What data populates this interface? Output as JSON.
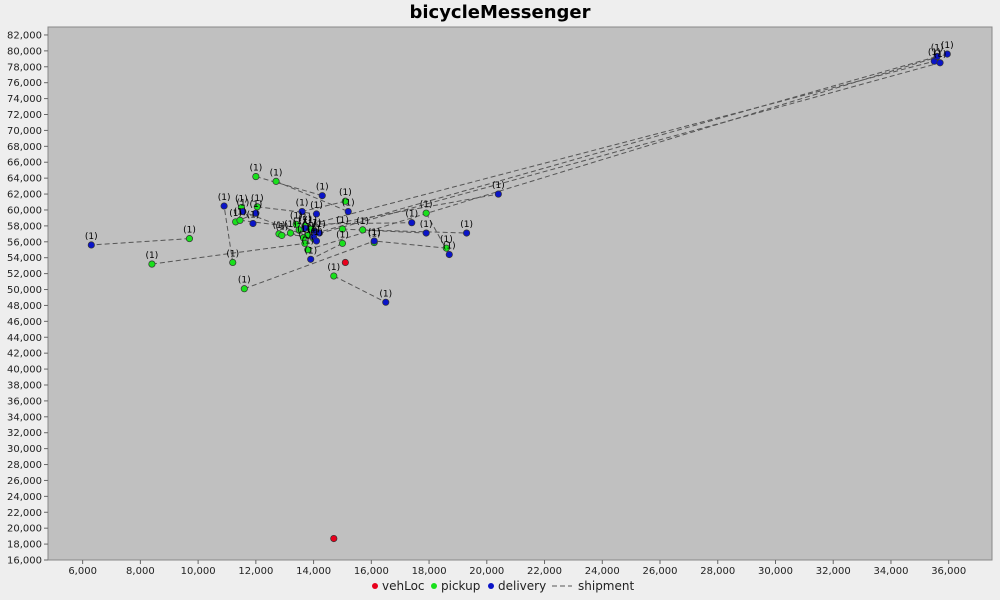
{
  "chart_data": {
    "type": "scatter",
    "title": "bicycleMessenger",
    "xlabel": "",
    "ylabel": "",
    "xlim": [
      4800,
      37500
    ],
    "ylim": [
      16000,
      83000
    ],
    "x_ticks": [
      6000,
      8000,
      10000,
      12000,
      14000,
      16000,
      18000,
      20000,
      22000,
      24000,
      26000,
      28000,
      30000,
      32000,
      34000,
      36000
    ],
    "y_ticks": [
      16000,
      18000,
      20000,
      22000,
      24000,
      26000,
      28000,
      30000,
      32000,
      34000,
      36000,
      38000,
      40000,
      42000,
      44000,
      46000,
      48000,
      50000,
      52000,
      54000,
      56000,
      58000,
      60000,
      62000,
      64000,
      66000,
      68000,
      70000,
      72000,
      74000,
      76000,
      78000,
      80000,
      82000
    ],
    "x_tick_labels": [
      "6,000",
      "8,000",
      "10,000",
      "12,000",
      "14,000",
      "16,000",
      "18,000",
      "20,000",
      "22,000",
      "24,000",
      "26,000",
      "28,000",
      "30,000",
      "32,000",
      "34,000",
      "36,000"
    ],
    "y_tick_labels": [
      "16,000",
      "18,000",
      "20,000",
      "22,000",
      "24,000",
      "26,000",
      "28,000",
      "30,000",
      "32,000",
      "34,000",
      "36,000",
      "38,000",
      "40,000",
      "42,000",
      "44,000",
      "46,000",
      "48,000",
      "50,000",
      "52,000",
      "54,000",
      "56,000",
      "58,000",
      "60,000",
      "62,000",
      "64,000",
      "66,000",
      "68,000",
      "70,000",
      "72,000",
      "74,000",
      "76,000",
      "78,000",
      "80,000",
      "82,000"
    ],
    "grid": false,
    "legend_position": "bottom",
    "point_label": "(1)",
    "colors": {
      "background": "#c0c0c0",
      "vehLoc": "#e8001c",
      "pickup": "#19e01c",
      "delivery": "#0a14c8",
      "shipment": "#555555"
    },
    "series": [
      {
        "name": "vehLoc",
        "points": [
          [
            15100,
            53400
          ],
          [
            14700,
            18700
          ]
        ]
      },
      {
        "name": "pickup",
        "points": [
          [
            9700,
            56400
          ],
          [
            8400,
            53200
          ],
          [
            11200,
            53400
          ],
          [
            11600,
            50100
          ],
          [
            12000,
            64200
          ],
          [
            12700,
            63600
          ],
          [
            12050,
            60400
          ],
          [
            11500,
            60300
          ],
          [
            11300,
            58500
          ],
          [
            11450,
            58700
          ],
          [
            12800,
            57000
          ],
          [
            13200,
            57100
          ],
          [
            13500,
            57500
          ],
          [
            13400,
            58200
          ],
          [
            13700,
            58000
          ],
          [
            13800,
            56800
          ],
          [
            13650,
            56500
          ],
          [
            13700,
            55800
          ],
          [
            13800,
            55000
          ],
          [
            14000,
            56400
          ],
          [
            13900,
            57600
          ],
          [
            15000,
            57600
          ],
          [
            15000,
            55800
          ],
          [
            15100,
            61100
          ],
          [
            15700,
            57500
          ],
          [
            16100,
            55900
          ],
          [
            14700,
            51700
          ],
          [
            17900,
            59600
          ],
          [
            18600,
            55200
          ],
          [
            12900,
            56800
          ]
        ]
      },
      {
        "name": "delivery",
        "points": [
          [
            6300,
            55600
          ],
          [
            10900,
            60500
          ],
          [
            11900,
            58300
          ],
          [
            12000,
            59600
          ],
          [
            11550,
            59800
          ],
          [
            14300,
            61800
          ],
          [
            13600,
            59800
          ],
          [
            14100,
            59500
          ],
          [
            15200,
            59800
          ],
          [
            13700,
            57700
          ],
          [
            14050,
            57300
          ],
          [
            14200,
            57100
          ],
          [
            14000,
            56600
          ],
          [
            14100,
            56100
          ],
          [
            13900,
            53800
          ],
          [
            16100,
            56100
          ],
          [
            16500,
            48400
          ],
          [
            17400,
            58400
          ],
          [
            17900,
            57100
          ],
          [
            18700,
            54400
          ],
          [
            19300,
            57100
          ],
          [
            20400,
            62000
          ],
          [
            35500,
            78700
          ],
          [
            35600,
            79300
          ],
          [
            35700,
            78500
          ],
          [
            35950,
            79600
          ]
        ]
      },
      {
        "name": "shipment",
        "segments": [
          [
            [
              9700,
              56400
            ],
            [
              6300,
              55600
            ]
          ],
          [
            [
              8400,
              53200
            ],
            [
              13700,
              55800
            ]
          ],
          [
            [
              11200,
              53400
            ],
            [
              10900,
              60500
            ]
          ],
          [
            [
              11600,
              50100
            ],
            [
              16100,
              56100
            ]
          ],
          [
            [
              12000,
              64200
            ],
            [
              14300,
              61800
            ]
          ],
          [
            [
              12700,
              63600
            ],
            [
              15200,
              59800
            ]
          ],
          [
            [
              12050,
              60400
            ],
            [
              14100,
              59500
            ]
          ],
          [
            [
              11500,
              60300
            ],
            [
              11900,
              58300
            ]
          ],
          [
            [
              11300,
              58500
            ],
            [
              12000,
              59600
            ]
          ],
          [
            [
              11450,
              58700
            ],
            [
              13700,
              57700
            ]
          ],
          [
            [
              12800,
              57000
            ],
            [
              14000,
              56600
            ]
          ],
          [
            [
              13200,
              57100
            ],
            [
              14100,
              56100
            ]
          ],
          [
            [
              13500,
              57500
            ],
            [
              20400,
              62000
            ]
          ],
          [
            [
              13400,
              58200
            ],
            [
              17400,
              58400
            ]
          ],
          [
            [
              13700,
              58000
            ],
            [
              35500,
              78700
            ]
          ],
          [
            [
              13800,
              56800
            ],
            [
              35600,
              79300
            ]
          ],
          [
            [
              13650,
              56500
            ],
            [
              35700,
              78500
            ]
          ],
          [
            [
              13800,
              55000
            ],
            [
              35950,
              79600
            ]
          ],
          [
            [
              14700,
              51700
            ],
            [
              16500,
              48400
            ]
          ],
          [
            [
              15000,
              57600
            ],
            [
              17900,
              57100
            ]
          ],
          [
            [
              15000,
              55800
            ],
            [
              13900,
              53800
            ]
          ],
          [
            [
              15100,
              61100
            ],
            [
              13600,
              59800
            ]
          ],
          [
            [
              17900,
              59600
            ],
            [
              18700,
              54400
            ]
          ],
          [
            [
              15700,
              57500
            ],
            [
              19300,
              57100
            ]
          ],
          [
            [
              18600,
              55200
            ],
            [
              16100,
              56100
            ]
          ],
          [
            [
              14000,
              56400
            ],
            [
              11550,
              59800
            ]
          ],
          [
            [
              13900,
              57600
            ],
            [
              14200,
              57100
            ]
          ],
          [
            [
              12900,
              56800
            ],
            [
              14050,
              57300
            ]
          ]
        ]
      }
    ]
  }
}
